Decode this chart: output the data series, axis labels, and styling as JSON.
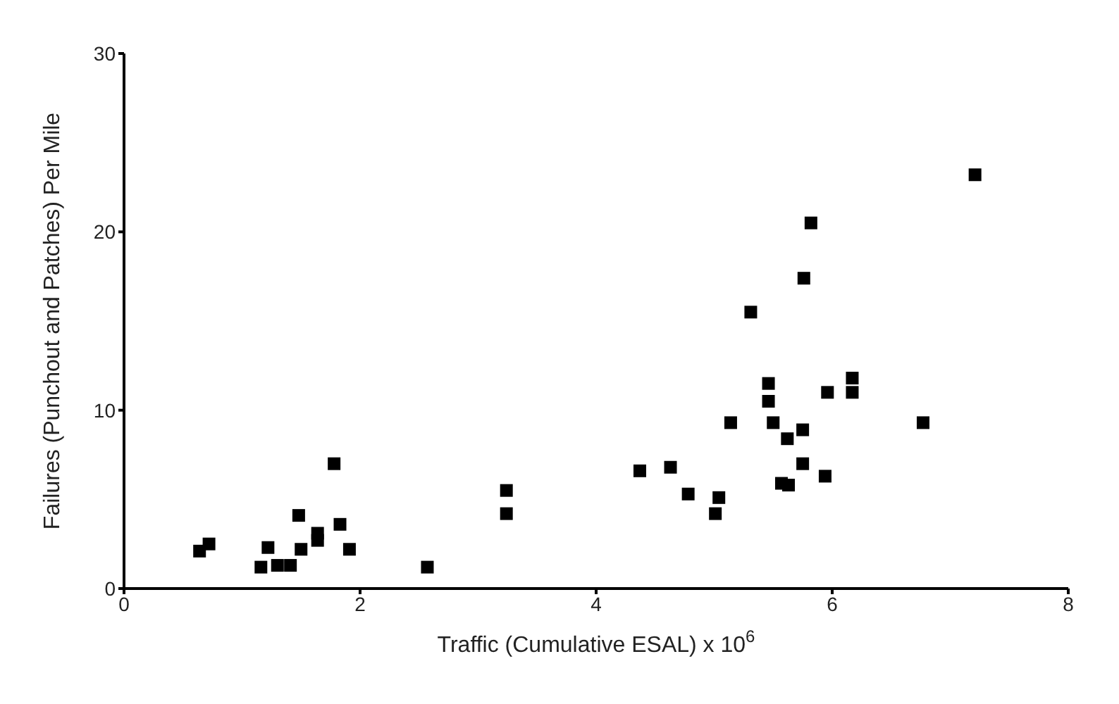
{
  "chart_data": {
    "type": "scatter",
    "xlabel": "Traffic (Cumulative ESAL) x 10$^{6}$",
    "ylabel": "Failures (Punchout and Patches) Per Mile",
    "xlim": [
      0,
      8
    ],
    "xticks": [
      0,
      2,
      4,
      6,
      8
    ],
    "ylim": [
      0,
      30
    ],
    "yticks": [
      0,
      10,
      20,
      30
    ],
    "grid": false,
    "legend": false,
    "marker": "square",
    "series": [
      {
        "color": "#000000",
        "x": [
          0.64,
          0.72,
          1.22,
          1.16,
          1.3,
          1.41,
          1.5,
          1.48,
          1.64,
          1.64,
          1.78,
          1.83,
          1.91,
          2.57,
          3.24,
          3.24,
          4.37,
          4.63,
          4.78,
          5.04,
          5.01,
          5.14,
          5.46,
          5.46,
          5.5,
          5.62,
          5.75,
          5.75,
          5.57,
          5.63,
          7.21,
          5.82,
          5.76,
          5.31,
          6.17,
          6.17,
          5.96,
          6.77,
          5.94
        ],
        "values": [
          2.1,
          2.5,
          2.3,
          1.2,
          1.3,
          1.3,
          2.2,
          4.1,
          3.1,
          2.7,
          7.0,
          3.6,
          2.2,
          1.2,
          5.5,
          4.2,
          6.6,
          6.8,
          5.3,
          5.1,
          4.2,
          9.3,
          11.5,
          10.5,
          9.3,
          8.4,
          8.9,
          7.0,
          5.9,
          5.8,
          23.2,
          20.5,
          17.4,
          15.5,
          11.8,
          11.0,
          11.0,
          9.3,
          6.3
        ]
      }
    ]
  }
}
